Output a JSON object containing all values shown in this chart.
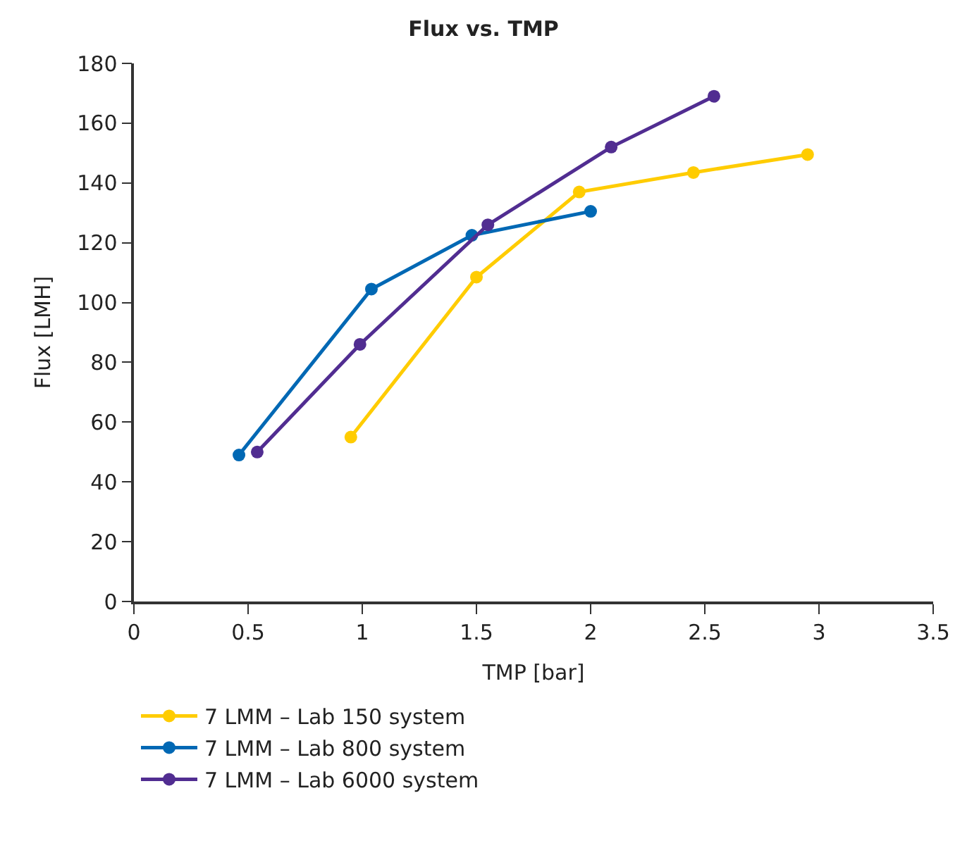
{
  "chart_data": {
    "type": "line",
    "title": "Flux vs. TMP",
    "xlabel": "TMP [bar]",
    "ylabel": "Flux [LMH]",
    "xlim": [
      0,
      3.5
    ],
    "xticks": [
      0,
      0.5,
      1,
      1.5,
      2,
      2.5,
      3,
      3.5
    ],
    "ylim": [
      0,
      180
    ],
    "yticks": [
      0,
      20,
      40,
      60,
      80,
      100,
      120,
      140,
      160,
      180
    ],
    "legend": "bottom",
    "marker": "circle",
    "line_style": "solid",
    "series": [
      {
        "name": "7 LMM – Lab 150 system",
        "color": "#ffcc00",
        "x": [
          0.95,
          1.5,
          1.95,
          2.45,
          2.95
        ],
        "values": [
          55,
          108.5,
          137,
          143.5,
          149.5
        ]
      },
      {
        "name": "7 LMM – Lab 800 system",
        "color": "#0068b4",
        "x": [
          0.46,
          1.04,
          1.48,
          2.0
        ],
        "values": [
          49,
          104.5,
          122.5,
          130.5
        ]
      },
      {
        "name": "7 LMM – Lab 6000 system",
        "color": "#512d91",
        "x": [
          0.54,
          0.99,
          1.55,
          2.09,
          2.54
        ],
        "values": [
          50,
          86,
          126,
          152,
          169
        ]
      }
    ]
  }
}
